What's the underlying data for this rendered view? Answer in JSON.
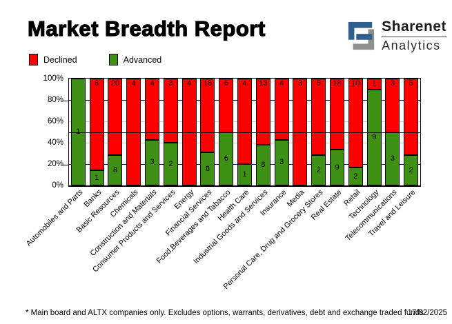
{
  "header": {
    "title": "Market Breadth Report",
    "logo": {
      "line1": "Sharenet",
      "line2": "Analytics"
    }
  },
  "legend": {
    "items": [
      {
        "label": "Declined",
        "color": "#ff0000"
      },
      {
        "label": "Advanced",
        "color": "#3e9114"
      }
    ]
  },
  "chart_data": {
    "type": "bar",
    "stacked": "percent",
    "categories": [
      "Automobiles and Parts",
      "Banks",
      "Basic Resources",
      "Chemicals",
      "Construction and Materials",
      "Consumer Products and Services",
      "Energy",
      "Financial Services",
      "Food,Beverages and Tabacco",
      "Health Care",
      "Industrial Goods and Services",
      "Insurance",
      "Media",
      "Personal Care, Drug and Grocery Stores",
      "Real Estate",
      "Retail",
      "Technology",
      "Telecommunications",
      "Travel and Leisure"
    ],
    "series": [
      {
        "name": "Declined",
        "color": "#ff0000",
        "values": [
          0,
          6,
          20,
          4,
          4,
          3,
          4,
          18,
          6,
          4,
          13,
          4,
          3,
          5,
          18,
          10,
          1,
          3,
          5
        ]
      },
      {
        "name": "Advanced",
        "color": "#3e9114",
        "values": [
          1,
          1,
          8,
          0,
          3,
          2,
          0,
          8,
          6,
          1,
          8,
          3,
          0,
          2,
          9,
          2,
          9,
          3,
          2
        ]
      }
    ],
    "y_axis": {
      "ticks": [
        0,
        20,
        40,
        60,
        80,
        100
      ],
      "unit": "%"
    },
    "gridlines": [
      {
        "y": 80,
        "style": "major"
      },
      {
        "y": 60,
        "style": "minor"
      },
      {
        "y": 50,
        "style": "mid"
      },
      {
        "y": 40,
        "style": "minor"
      },
      {
        "y": 20,
        "style": "major"
      }
    ],
    "legend_position": "top-left",
    "bar_labels": "segment counts"
  },
  "colors": {
    "grid_major": "#00006b",
    "grid_minor": "#c9c9c9",
    "grid_mid": "#000000",
    "logo_blue": "#2f5f8c",
    "logo_gray": "#8f8f8f"
  },
  "footer": {
    "footnote": "* Main board and ALTX companies only. Excludes options, warrants, derivatives, debt and exchange traded funds",
    "date": "17/02/2025"
  }
}
